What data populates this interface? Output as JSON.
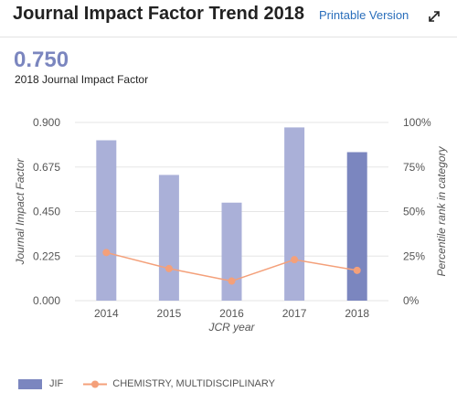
{
  "header": {
    "title": "Journal Impact Factor Trend 2018",
    "print_label": "Printable Version"
  },
  "summary": {
    "value": "0.750",
    "caption": "2018 Journal Impact Factor"
  },
  "colors": {
    "bar": "#aab0d8",
    "bar_current": "#7b86bf",
    "line": "#f4a07a",
    "grid": "#e6e6e6",
    "axis_text": "#555555"
  },
  "chart_data": {
    "type": "bar",
    "categories": [
      "2014",
      "2015",
      "2016",
      "2017",
      "2018"
    ],
    "xlabel": "JCR year",
    "ylabel": "Journal Impact Factor",
    "ylabel_right": "Percentile rank in category",
    "ylim": [
      0,
      0.9
    ],
    "yticks": [
      "0.000",
      "0.225",
      "0.450",
      "0.675",
      "0.900"
    ],
    "ylim_right": [
      0,
      100
    ],
    "yticks_right": [
      "0%",
      "25%",
      "50%",
      "75%",
      "100%"
    ],
    "grid": true,
    "legend_position": "bottom-left",
    "series": [
      {
        "name": "JIF",
        "type": "bar",
        "axis": "left",
        "values": [
          0.81,
          0.635,
          0.495,
          0.875,
          0.75
        ]
      },
      {
        "name": "CHEMISTRY, MULTIDISCIPLINARY",
        "type": "line",
        "axis": "right",
        "values": [
          27,
          18,
          11,
          23,
          17
        ]
      }
    ]
  }
}
